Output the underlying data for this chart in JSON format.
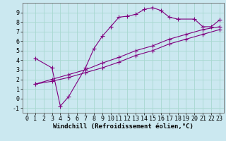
{
  "xlabel": "Windchill (Refroidissement éolien,°C)",
  "background_color": "#cbe8f0",
  "grid_color": "#a8d8d0",
  "line_color": "#800080",
  "spine_color": "#666666",
  "xlim": [
    -0.5,
    23.5
  ],
  "ylim": [
    -1.5,
    10.0
  ],
  "xticks": [
    0,
    1,
    2,
    3,
    4,
    5,
    6,
    7,
    8,
    9,
    10,
    11,
    12,
    13,
    14,
    15,
    16,
    17,
    18,
    19,
    20,
    21,
    22,
    23
  ],
  "yticks": [
    -1,
    0,
    1,
    2,
    3,
    4,
    5,
    6,
    7,
    8,
    9
  ],
  "line1_x": [
    1,
    3,
    4,
    5,
    7,
    8,
    9,
    10,
    11,
    12,
    13,
    14,
    15,
    16,
    17,
    18,
    20,
    21,
    22,
    23
  ],
  "line1_y": [
    4.2,
    3.2,
    -0.8,
    0.2,
    3.2,
    5.2,
    6.5,
    7.5,
    8.5,
    8.6,
    8.8,
    9.3,
    9.5,
    9.2,
    8.5,
    8.3,
    8.3,
    7.5,
    7.5,
    8.2
  ],
  "line2_x": [
    1,
    3,
    5,
    7,
    9,
    11,
    13,
    15,
    17,
    19,
    21,
    23
  ],
  "line2_y": [
    1.5,
    2.0,
    2.5,
    3.0,
    3.7,
    4.3,
    5.0,
    5.5,
    6.2,
    6.7,
    7.2,
    7.5
  ],
  "line3_x": [
    1,
    3,
    5,
    7,
    9,
    11,
    13,
    15,
    17,
    19,
    21,
    23
  ],
  "line3_y": [
    1.5,
    1.8,
    2.2,
    2.7,
    3.2,
    3.8,
    4.5,
    5.0,
    5.7,
    6.2,
    6.7,
    7.2
  ],
  "tick_fontsize": 6,
  "label_fontsize": 6.5
}
